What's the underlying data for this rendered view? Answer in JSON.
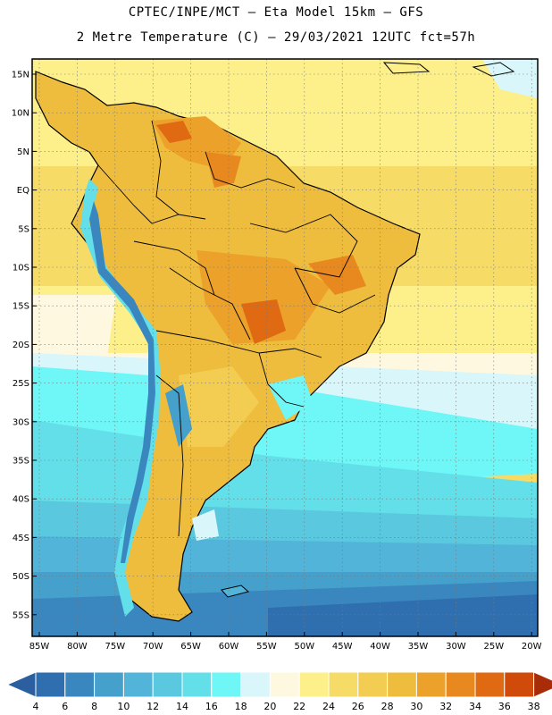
{
  "title_line1": "CPTEC/INPE/MCT –  Eta Model 15km – GFS",
  "title_line2": "2 Metre Temperature (C) – 29/03/2021 12UTC fct=57h",
  "lat_labels": [
    "15N",
    "10N",
    "5N",
    "EQ",
    "5S",
    "10S",
    "15S",
    "20S",
    "25S",
    "30S",
    "35S",
    "40S",
    "45S",
    "50S",
    "55S"
  ],
  "lon_labels": [
    "85W",
    "80W",
    "75W",
    "70W",
    "65W",
    "60W",
    "55W",
    "50W",
    "45W",
    "40W",
    "35W",
    "30W",
    "25W",
    "20W"
  ],
  "colorbar": {
    "ticks": [
      "4",
      "6",
      "8",
      "10",
      "12",
      "14",
      "16",
      "18",
      "20",
      "22",
      "24",
      "26",
      "28",
      "30",
      "32",
      "34",
      "36",
      "38"
    ],
    "colors": [
      "#2f6fb0",
      "#3a87c0",
      "#45a0cc",
      "#52b4d8",
      "#5ac9df",
      "#62dfe8",
      "#6ff6f6",
      "#d9f6fb",
      "#fff8e0",
      "#fdf08a",
      "#f6dc66",
      "#f2cd52",
      "#eebd3e",
      "#eba12a",
      "#e8891f",
      "#e06a12",
      "#d04a09",
      "#b83205"
    ],
    "low_end_color": "#2b5fa0",
    "high_end_color": "#a92c08"
  }
}
